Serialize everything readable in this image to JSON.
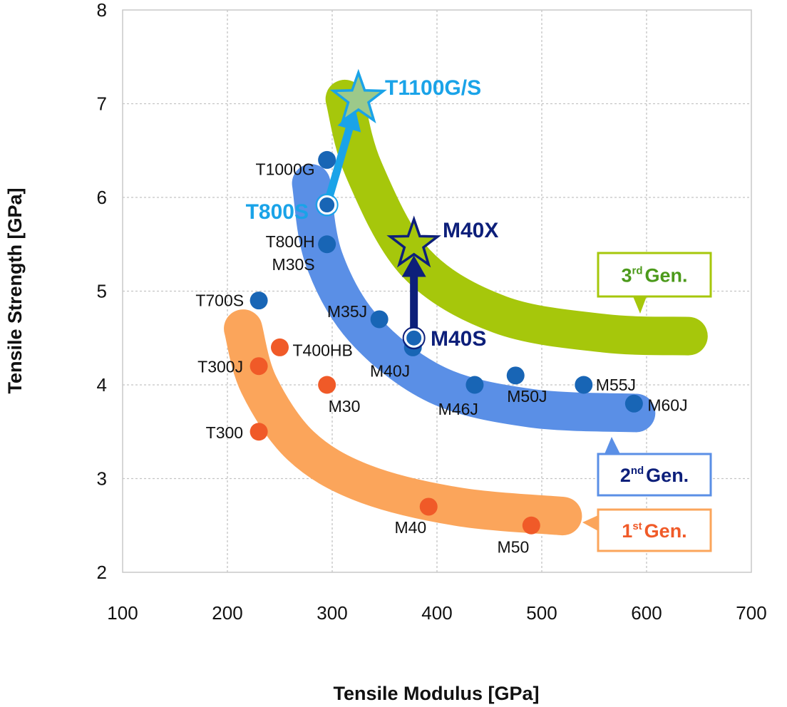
{
  "chart_data": {
    "type": "scatter",
    "title": "",
    "xlabel": "Tensile Modulus [GPa]",
    "ylabel": "Tensile Strength [GPa]",
    "xlim": [
      100,
      700
    ],
    "ylim": [
      2,
      8
    ],
    "xticks": [
      100,
      200,
      300,
      400,
      500,
      600,
      700
    ],
    "yticks": [
      2,
      3,
      4,
      5,
      6,
      7,
      8
    ],
    "grid": true,
    "series": [
      {
        "name": "1st Gen.",
        "color": "#f05a28",
        "band_color": "#fba55b",
        "points": [
          {
            "label": "T300",
            "x": 230,
            "y": 3.5
          },
          {
            "label": "T300J",
            "x": 230,
            "y": 4.2
          },
          {
            "label": "T400HB",
            "x": 250,
            "y": 4.4
          },
          {
            "label": "M30",
            "x": 295,
            "y": 4.0
          },
          {
            "label": "M40",
            "x": 392,
            "y": 2.7
          },
          {
            "label": "M50",
            "x": 490,
            "y": 2.5
          }
        ],
        "band": [
          [
            215,
            4.6
          ],
          [
            230,
            4.0
          ],
          [
            270,
            3.35
          ],
          [
            330,
            2.95
          ],
          [
            420,
            2.7
          ],
          [
            520,
            2.6
          ]
        ]
      },
      {
        "name": "2nd Gen.",
        "color": "#1865b5",
        "band_color": "#5a8fe6",
        "points": [
          {
            "label": "T700S",
            "x": 230,
            "y": 4.9
          },
          {
            "label": "T800H",
            "x": 295,
            "y": 5.5
          },
          {
            "label": "M30S",
            "x": 295,
            "y": 5.5
          },
          {
            "label": "T1000G",
            "x": 295,
            "y": 6.4
          },
          {
            "label": "M35J",
            "x": 345,
            "y": 4.7
          },
          {
            "label": "M40J",
            "x": 377,
            "y": 4.4
          },
          {
            "label": "M46J",
            "x": 436,
            "y": 4.0
          },
          {
            "label": "M50J",
            "x": 475,
            "y": 4.1
          },
          {
            "label": "M55J",
            "x": 540,
            "y": 4.0
          },
          {
            "label": "M60J",
            "x": 588,
            "y": 3.8
          }
        ],
        "band": [
          [
            280,
            6.15
          ],
          [
            292,
            5.35
          ],
          [
            330,
            4.6
          ],
          [
            400,
            4.0
          ],
          [
            490,
            3.75
          ],
          [
            590,
            3.7
          ]
        ]
      },
      {
        "name": "3rd Gen.",
        "color": "#4c9a1b",
        "band_color": "#a6c70b",
        "points": [
          {
            "label": "T1100G/S",
            "x": 325,
            "y": 7.05,
            "marker": "star"
          },
          {
            "label": "M40X",
            "x": 378,
            "y": 5.5,
            "marker": "star"
          }
        ],
        "band": [
          [
            312,
            7.05
          ],
          [
            330,
            6.3
          ],
          [
            380,
            5.3
          ],
          [
            460,
            4.75
          ],
          [
            560,
            4.55
          ],
          [
            640,
            4.52
          ]
        ]
      }
    ],
    "upgrades": [
      {
        "from": "T800S",
        "from_x": 295,
        "from_y": 5.92,
        "to": "T1100G/S",
        "to_x": 322,
        "to_y": 6.95,
        "color": "#1aa3e8"
      },
      {
        "from": "M40S",
        "from_x": 378,
        "from_y": 4.5,
        "to": "M40X",
        "to_x": 378,
        "to_y": 5.38,
        "color": "#0d1f7a"
      }
    ],
    "highlighted": [
      {
        "label": "T800S",
        "x": 295,
        "y": 5.92,
        "color": "#1aa3e8"
      },
      {
        "label": "M40S",
        "x": 378,
        "y": 4.5,
        "color": "#0d1f7a"
      }
    ]
  },
  "legend_boxes": [
    {
      "id": "gen3",
      "num": "3",
      "sup": "rd",
      "text": "Gen.",
      "color": "#4c9a1b",
      "border": "#a6c70b"
    },
    {
      "id": "gen2",
      "num": "2",
      "sup": "nd",
      "text": "Gen.",
      "color": "#0d1f7a",
      "border": "#5a8fe6"
    },
    {
      "id": "gen1",
      "num": "1",
      "sup": "st",
      "text": "Gen.",
      "color": "#f05a28",
      "border": "#fba55b"
    }
  ]
}
